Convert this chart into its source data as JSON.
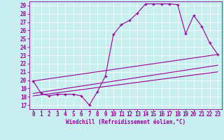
{
  "title": "",
  "xlabel": "Windchill (Refroidissement éolien,°C)",
  "ylabel": "",
  "bg_color": "#c8eef0",
  "line_color": "#990099",
  "xlim": [
    -0.5,
    23.5
  ],
  "ylim": [
    16.5,
    29.5
  ],
  "xticks": [
    0,
    1,
    2,
    3,
    4,
    5,
    6,
    7,
    8,
    9,
    10,
    11,
    12,
    13,
    14,
    15,
    16,
    17,
    18,
    19,
    20,
    21,
    22,
    23
  ],
  "yticks": [
    17,
    18,
    19,
    20,
    21,
    22,
    23,
    24,
    25,
    26,
    27,
    28,
    29
  ],
  "line1_x": [
    0,
    1,
    2,
    3,
    4,
    5,
    6,
    7,
    8,
    9,
    10,
    11,
    12,
    13,
    14,
    15,
    16,
    17,
    18,
    19,
    20,
    21,
    22,
    23
  ],
  "line1_y": [
    19.9,
    18.4,
    18.1,
    18.3,
    18.3,
    18.3,
    18.1,
    17.0,
    18.6,
    20.5,
    25.5,
    26.7,
    27.2,
    28.1,
    29.2,
    29.2,
    29.2,
    29.2,
    29.1,
    25.6,
    27.8,
    26.5,
    24.5,
    23.1
  ],
  "line2_x": [
    0,
    23
  ],
  "line2_y": [
    19.9,
    23.1
  ],
  "line3_x": [
    0,
    23
  ],
  "line3_y": [
    18.4,
    21.8
  ],
  "line4_x": [
    0,
    23
  ],
  "line4_y": [
    18.1,
    21.0
  ]
}
